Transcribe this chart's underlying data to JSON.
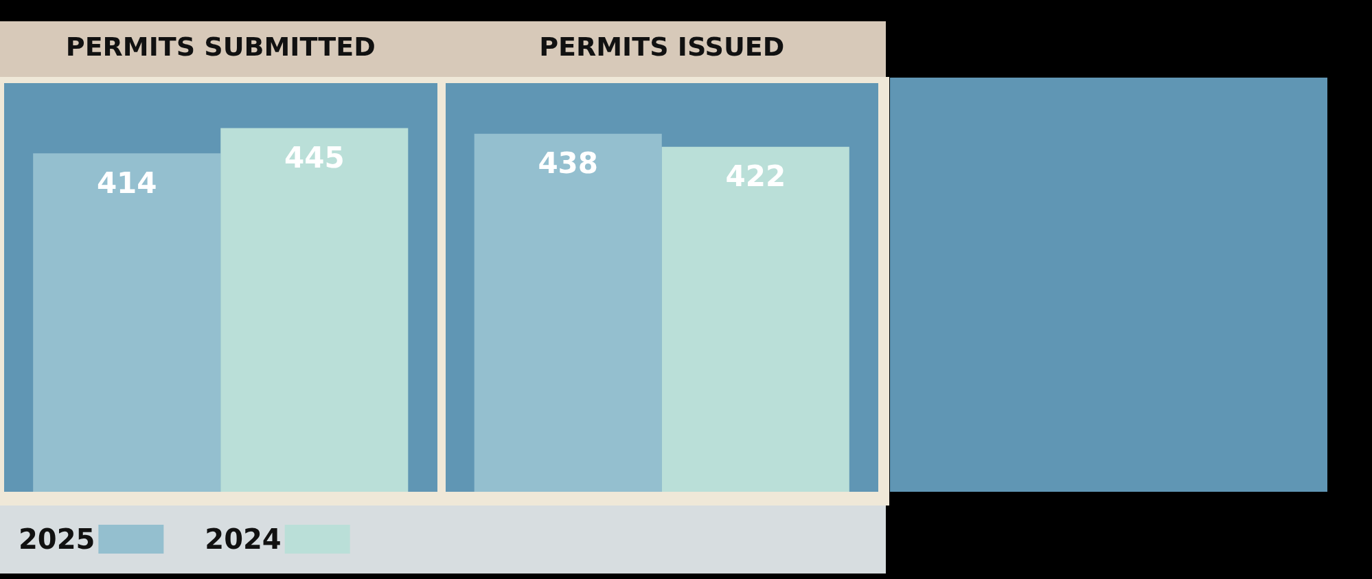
{
  "chart_data": {
    "type": "bar",
    "categories": [
      "PERMITS SUBMITTED",
      "PERMITS ISSUED"
    ],
    "series": [
      {
        "name": "2025",
        "color": "#94bfcf",
        "values": [
          414,
          438
        ]
      },
      {
        "name": "2024",
        "color": "#badfd8",
        "values": [
          445,
          422
        ]
      }
    ],
    "data_labels": true,
    "legend": "bottom left"
  }
}
